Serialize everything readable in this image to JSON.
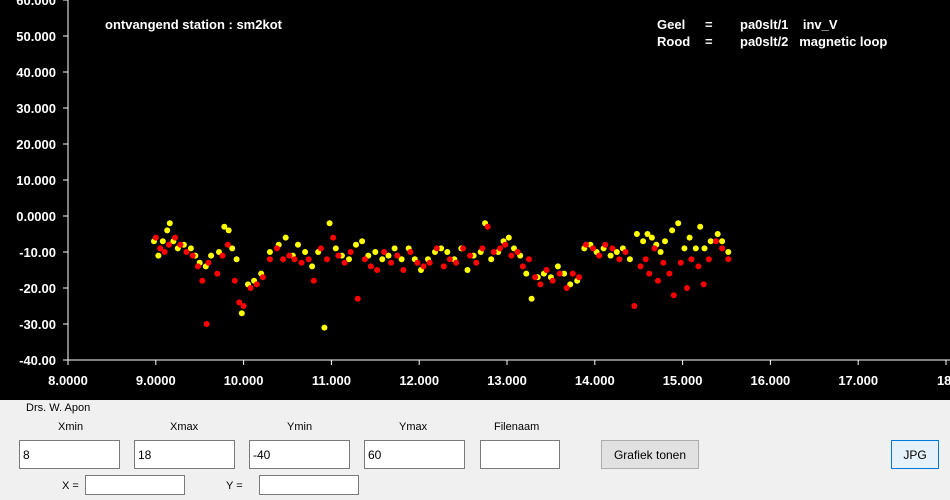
{
  "chart_data": {
    "type": "scatter",
    "xlim": [
      8,
      18
    ],
    "ylim": [
      -40,
      60
    ],
    "x_ticks": [
      8,
      9,
      10,
      11,
      12,
      13,
      14,
      15,
      16,
      17,
      18
    ],
    "x_tick_labels": [
      "8.0000",
      "9.0000",
      "10.000",
      "11.000",
      "12.000",
      "13.000",
      "14.000",
      "15.000",
      "16.000",
      "17.000",
      "18."
    ],
    "y_ticks": [
      60,
      50,
      40,
      30,
      20,
      10,
      0,
      -10,
      -20,
      -30,
      -40
    ],
    "y_tick_labels": [
      "60.000",
      "50.000",
      "40.000",
      "30.000",
      "20.000",
      "10.000",
      "0.0000",
      "-10.00",
      "-20.00",
      "-30.00",
      "-40.00"
    ],
    "grid": false,
    "annotations": {
      "station": "ontvangend station :  sm2kot",
      "legend_line1_a": "Geel",
      "legend_line1_b": "=",
      "legend_line1_c": "pa0slt/1    inv_V",
      "legend_line2_a": "Rood",
      "legend_line2_b": "=",
      "legend_line2_c": "pa0slt/2   magnetic loop"
    },
    "series": [
      {
        "color": "#ffff00",
        "points": [
          [
            8.98,
            -7
          ],
          [
            9.03,
            -11
          ],
          [
            9.08,
            -7
          ],
          [
            9.13,
            -4
          ],
          [
            9.16,
            -2
          ],
          [
            9.2,
            -7
          ],
          [
            9.25,
            -9
          ],
          [
            9.32,
            -8
          ],
          [
            9.4,
            -9
          ],
          [
            9.45,
            -11
          ],
          [
            9.5,
            -13
          ],
          [
            9.57,
            -14
          ],
          [
            9.63,
            -11
          ],
          [
            9.72,
            -10
          ],
          [
            9.78,
            -3
          ],
          [
            9.83,
            -4
          ],
          [
            9.87,
            -9
          ],
          [
            9.92,
            -12
          ],
          [
            9.98,
            -27
          ],
          [
            10.05,
            -19
          ],
          [
            10.12,
            -18
          ],
          [
            10.2,
            -16
          ],
          [
            10.3,
            -10
          ],
          [
            10.4,
            -8
          ],
          [
            10.48,
            -6
          ],
          [
            10.56,
            -11
          ],
          [
            10.62,
            -8
          ],
          [
            10.7,
            -10
          ],
          [
            10.78,
            -14
          ],
          [
            10.85,
            -10
          ],
          [
            10.92,
            -31
          ],
          [
            10.98,
            -2
          ],
          [
            11.05,
            -9
          ],
          [
            11.12,
            -11
          ],
          [
            11.2,
            -12
          ],
          [
            11.28,
            -8
          ],
          [
            11.35,
            -7
          ],
          [
            11.42,
            -11
          ],
          [
            11.5,
            -10
          ],
          [
            11.58,
            -12
          ],
          [
            11.65,
            -11
          ],
          [
            11.72,
            -9
          ],
          [
            11.8,
            -12
          ],
          [
            11.88,
            -9
          ],
          [
            11.95,
            -12
          ],
          [
            12.02,
            -15
          ],
          [
            12.1,
            -12
          ],
          [
            12.18,
            -10
          ],
          [
            12.25,
            -9
          ],
          [
            12.32,
            -10
          ],
          [
            12.4,
            -12
          ],
          [
            12.48,
            -9
          ],
          [
            12.55,
            -15
          ],
          [
            12.62,
            -11
          ],
          [
            12.7,
            -10
          ],
          [
            12.75,
            -2
          ],
          [
            12.82,
            -12
          ],
          [
            12.9,
            -10
          ],
          [
            12.96,
            -7
          ],
          [
            13.02,
            -6
          ],
          [
            13.08,
            -9
          ],
          [
            13.15,
            -11
          ],
          [
            13.22,
            -16
          ],
          [
            13.28,
            -23
          ],
          [
            13.35,
            -17
          ],
          [
            13.42,
            -16
          ],
          [
            13.5,
            -17
          ],
          [
            13.58,
            -14
          ],
          [
            13.65,
            -16
          ],
          [
            13.72,
            -19
          ],
          [
            13.8,
            -18
          ],
          [
            13.88,
            -9
          ],
          [
            13.95,
            -8
          ],
          [
            14.02,
            -10
          ],
          [
            14.1,
            -9
          ],
          [
            14.18,
            -11
          ],
          [
            14.25,
            -10
          ],
          [
            14.32,
            -9
          ],
          [
            14.4,
            -12
          ],
          [
            14.48,
            -5
          ],
          [
            14.55,
            -7
          ],
          [
            14.6,
            -5
          ],
          [
            14.65,
            -6
          ],
          [
            14.7,
            -8
          ],
          [
            14.75,
            -10
          ],
          [
            14.8,
            -7
          ],
          [
            14.88,
            -4
          ],
          [
            14.95,
            -2
          ],
          [
            15.02,
            -9
          ],
          [
            15.08,
            -6
          ],
          [
            15.15,
            -9
          ],
          [
            15.2,
            -3
          ],
          [
            15.25,
            -9
          ],
          [
            15.32,
            -7
          ],
          [
            15.4,
            -5
          ],
          [
            15.45,
            -7
          ],
          [
            15.52,
            -10
          ]
        ]
      },
      {
        "color": "#ff0000",
        "points": [
          [
            9.0,
            -6
          ],
          [
            9.05,
            -9
          ],
          [
            9.1,
            -10
          ],
          [
            9.15,
            -8
          ],
          [
            9.22,
            -6
          ],
          [
            9.28,
            -8
          ],
          [
            9.35,
            -10
          ],
          [
            9.42,
            -11
          ],
          [
            9.48,
            -14
          ],
          [
            9.53,
            -18
          ],
          [
            9.58,
            -30
          ],
          [
            9.6,
            -13
          ],
          [
            9.7,
            -16
          ],
          [
            9.76,
            -11
          ],
          [
            9.82,
            -8
          ],
          [
            9.9,
            -18
          ],
          [
            9.95,
            -24
          ],
          [
            10.0,
            -25
          ],
          [
            10.08,
            -20
          ],
          [
            10.15,
            -19
          ],
          [
            10.22,
            -17
          ],
          [
            10.3,
            -12
          ],
          [
            10.38,
            -9
          ],
          [
            10.45,
            -12
          ],
          [
            10.52,
            -11
          ],
          [
            10.58,
            -12
          ],
          [
            10.66,
            -13
          ],
          [
            10.74,
            -12
          ],
          [
            10.8,
            -18
          ],
          [
            10.88,
            -9
          ],
          [
            10.95,
            -12
          ],
          [
            11.02,
            -6
          ],
          [
            11.08,
            -11
          ],
          [
            11.15,
            -13
          ],
          [
            11.22,
            -10
          ],
          [
            11.3,
            -23
          ],
          [
            11.38,
            -12
          ],
          [
            11.45,
            -14
          ],
          [
            11.52,
            -15
          ],
          [
            11.6,
            -10
          ],
          [
            11.68,
            -13
          ],
          [
            11.75,
            -11
          ],
          [
            11.82,
            -15
          ],
          [
            11.9,
            -10
          ],
          [
            11.98,
            -13
          ],
          [
            12.05,
            -14
          ],
          [
            12.12,
            -13
          ],
          [
            12.2,
            -9
          ],
          [
            12.28,
            -14
          ],
          [
            12.35,
            -12
          ],
          [
            12.42,
            -13
          ],
          [
            12.5,
            -9
          ],
          [
            12.58,
            -11
          ],
          [
            12.65,
            -13
          ],
          [
            12.72,
            -9
          ],
          [
            12.78,
            -3
          ],
          [
            12.85,
            -10
          ],
          [
            12.92,
            -9
          ],
          [
            12.98,
            -8
          ],
          [
            13.05,
            -11
          ],
          [
            13.12,
            -10
          ],
          [
            13.18,
            -14
          ],
          [
            13.25,
            -12
          ],
          [
            13.32,
            -17
          ],
          [
            13.38,
            -19
          ],
          [
            13.45,
            -15
          ],
          [
            13.52,
            -18
          ],
          [
            13.6,
            -16
          ],
          [
            13.68,
            -20
          ],
          [
            13.75,
            -16
          ],
          [
            13.82,
            -17
          ],
          [
            13.9,
            -8
          ],
          [
            13.98,
            -9
          ],
          [
            14.05,
            -11
          ],
          [
            14.12,
            -8
          ],
          [
            14.2,
            -9
          ],
          [
            14.28,
            -12
          ],
          [
            14.35,
            -10
          ],
          [
            14.45,
            -25
          ],
          [
            14.52,
            -14
          ],
          [
            14.58,
            -12
          ],
          [
            14.62,
            -16
          ],
          [
            14.68,
            -9
          ],
          [
            14.72,
            -18
          ],
          [
            14.78,
            -13
          ],
          [
            14.85,
            -16
          ],
          [
            14.9,
            -22
          ],
          [
            14.98,
            -13
          ],
          [
            15.05,
            -20
          ],
          [
            15.1,
            -12
          ],
          [
            15.18,
            -14
          ],
          [
            15.24,
            -19
          ],
          [
            15.3,
            -12
          ],
          [
            15.38,
            -7
          ],
          [
            15.45,
            -9
          ],
          [
            15.52,
            -12
          ]
        ]
      }
    ]
  },
  "panel": {
    "author": "Drs. W. Apon",
    "xmin_label": "Xmin",
    "xmax_label": "Xmax",
    "ymin_label": "Ymin",
    "ymax_label": "Ymax",
    "filenaam_label": "Filenaam",
    "xmin_value": "8",
    "xmax_value": "18",
    "ymin_value": "-40",
    "ymax_value": "60",
    "filenaam_value": "",
    "grafiek_button": "Grafiek tonen",
    "jpg_button": "JPG",
    "x_label": "X =",
    "y_label": "Y =",
    "x_value": "",
    "y_value": ""
  }
}
